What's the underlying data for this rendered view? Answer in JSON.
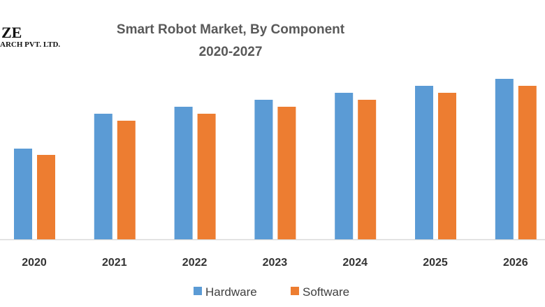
{
  "logo": {
    "line1": "ZE",
    "line2": "ARCH PVT. LTD."
  },
  "chart_data": {
    "type": "bar",
    "title": "Smart Robot Market, By Component",
    "subtitle": "2020-2027",
    "categories": [
      "2020",
      "2021",
      "2022",
      "2023",
      "2024",
      "2025",
      "2026"
    ],
    "series": [
      {
        "name": "Hardware",
        "color": "#5B9BD5",
        "values": [
          130,
          180,
          190,
          200,
          210,
          220,
          230
        ]
      },
      {
        "name": "Software",
        "color": "#ED7D31",
        "values": [
          121,
          170,
          180,
          190,
          200,
          210,
          220
        ]
      }
    ],
    "xlabel": "",
    "ylabel": "",
    "ylim": [
      0,
      230
    ],
    "grid": false,
    "legend": "bottom"
  }
}
